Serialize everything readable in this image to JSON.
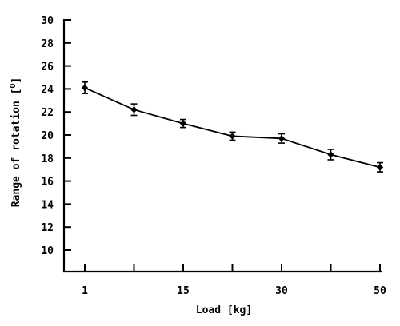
{
  "chart_data": {
    "type": "line",
    "title": "",
    "xlabel": "Load [kg]",
    "ylabel_main": "Range of rotation [",
    "ylabel_sup": "O",
    "ylabel_close": "]",
    "ylim": [
      8,
      30
    ],
    "yticks": [
      10,
      12,
      14,
      16,
      18,
      20,
      22,
      24,
      26,
      28,
      30
    ],
    "xticks": [
      {
        "position": 0,
        "label": "1"
      },
      {
        "position": 2,
        "label": "15"
      },
      {
        "position": 4,
        "label": "30"
      },
      {
        "position": 6,
        "label": "50"
      }
    ],
    "x_positions": [
      0,
      1,
      2,
      3,
      4,
      5,
      6
    ],
    "series": [
      {
        "values": [
          24.1,
          22.2,
          21.0,
          19.9,
          19.7,
          18.3,
          17.2
        ],
        "errors": [
          0.5,
          0.5,
          0.35,
          0.35,
          0.4,
          0.45,
          0.4
        ]
      }
    ],
    "grid": false,
    "legend": "none"
  }
}
